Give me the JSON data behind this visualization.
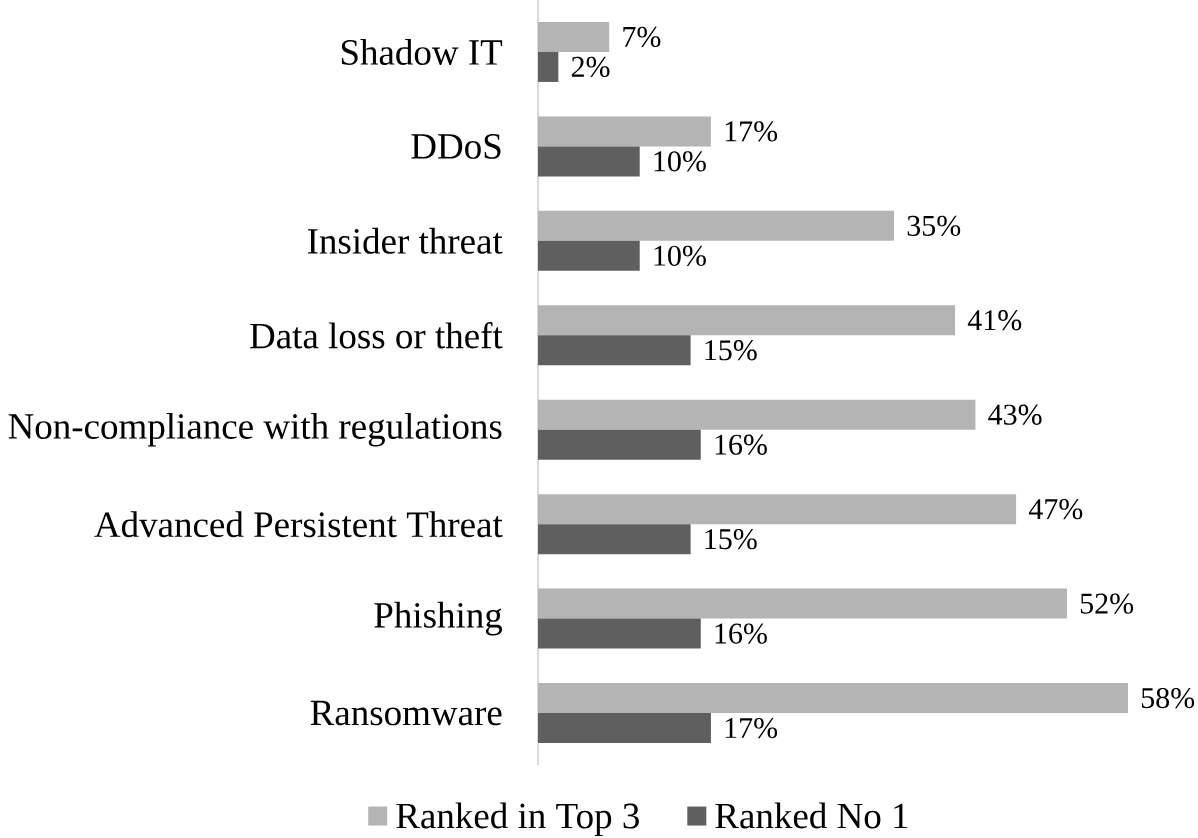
{
  "chart_data": {
    "type": "bar",
    "orientation": "horizontal",
    "categories": [
      "Shadow IT",
      "DDoS",
      "Insider threat",
      "Data loss or theft",
      "Non-compliance with regulations",
      "Advanced Persistent Threat",
      "Phishing",
      "Ransomware"
    ],
    "series": [
      {
        "name": "Ranked in Top 3",
        "color": "#b4b4b4",
        "values": [
          7,
          17,
          35,
          41,
          43,
          47,
          52,
          58
        ],
        "value_labels": [
          "7%",
          "17%",
          "35%",
          "41%",
          "43%",
          "47%",
          "52%",
          "58%"
        ]
      },
      {
        "name": "Ranked No 1",
        "color": "#5f5f5f",
        "values": [
          2,
          10,
          10,
          15,
          16,
          15,
          16,
          17
        ],
        "value_labels": [
          "2%",
          "10%",
          "10%",
          "15%",
          "16%",
          "15%",
          "16%",
          "17%"
        ]
      }
    ],
    "legend": "bottom",
    "tick_labels": "y"
  }
}
